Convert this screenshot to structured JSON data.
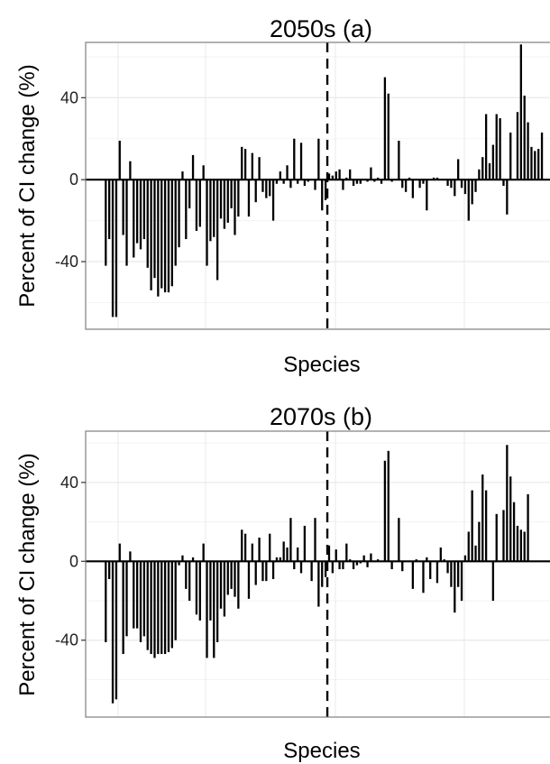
{
  "chart_data": [
    {
      "type": "bar",
      "title": "2050s (a)",
      "xlabel": "Species",
      "ylabel": "Percent of CI change (%)",
      "ylim": [
        -73,
        67
      ],
      "yticks": [
        -40,
        0,
        40
      ],
      "ytick_labels": [
        "-40",
        "0",
        "40"
      ],
      "grid": true,
      "xticks_shown": false,
      "divider_position": 63.5,
      "colors": {
        "bar": "#000000",
        "grid": "#ebebeb",
        "zero_line": "#000000",
        "divider": "#000000",
        "panel_border": "#7f7f7f"
      },
      "values": [
        -42,
        -29,
        -67,
        -67,
        19,
        -27,
        -42,
        9,
        -38,
        -31,
        -34,
        -29,
        -43,
        -54,
        -48,
        -57,
        -53,
        -55,
        -55,
        -52,
        -42,
        -33,
        4,
        -29,
        -14,
        12,
        -25,
        -23,
        7,
        -42,
        -30,
        -28,
        -49,
        -19,
        -24,
        -21,
        -14,
        -27,
        -18,
        16,
        15,
        -18,
        13,
        -11,
        11,
        -6,
        -9,
        -8,
        -20,
        -2,
        4,
        -2,
        7,
        -4,
        20,
        -2,
        18,
        -3,
        -1,
        0,
        -5,
        20,
        -15,
        -10,
        3,
        2,
        4,
        5,
        -5,
        1,
        5,
        -3,
        -2,
        -2,
        0,
        -1,
        6,
        -1,
        1,
        -2,
        50,
        42,
        -1,
        0,
        19,
        -4,
        -6,
        1,
        -9,
        0,
        -4,
        -2,
        -15,
        0,
        1,
        1,
        0,
        0,
        -3,
        -4,
        -8,
        10,
        -4,
        -7,
        -20,
        -12,
        -6,
        5,
        11,
        32,
        8,
        17,
        32,
        30,
        -3,
        -17,
        23,
        0,
        33,
        66,
        41,
        28,
        16,
        14,
        15,
        23
      ]
    },
    {
      "type": "bar",
      "title": "2070s (b)",
      "xlabel": "Species",
      "ylabel": "Percent of CI change (%)",
      "ylim": [
        -79,
        66
      ],
      "yticks": [
        -40,
        0,
        40
      ],
      "ytick_labels": [
        "-40",
        "0",
        "40"
      ],
      "grid": true,
      "xticks_shown": false,
      "divider_position": 63.5,
      "colors": {
        "bar": "#000000",
        "grid": "#ebebeb",
        "zero_line": "#000000",
        "divider": "#000000",
        "panel_border": "#7f7f7f"
      },
      "values": [
        -41,
        -9,
        -72,
        -70,
        9,
        -47,
        -38,
        5,
        -34,
        -34,
        -41,
        -38,
        -45,
        -47,
        -49,
        -47,
        -47,
        -47,
        -46,
        -44,
        -40,
        -2,
        3,
        -14,
        -20,
        2,
        -27,
        -30,
        9,
        -49,
        -30,
        -49,
        -41,
        -24,
        -28,
        -17,
        -14,
        -18,
        -24,
        16,
        14,
        -19,
        9,
        -12,
        12,
        -10,
        -10,
        14,
        -9,
        2,
        2,
        10,
        7,
        22,
        -4,
        7,
        -6,
        18,
        0,
        -10,
        22,
        -23,
        -13,
        -8,
        8,
        -6,
        6,
        -4,
        -4,
        9,
        1,
        -4,
        -2,
        -1,
        3,
        -3,
        4,
        0,
        1,
        0,
        51,
        56,
        -4,
        0,
        22,
        -5,
        0,
        0,
        -14,
        1,
        0,
        -16,
        2,
        -9,
        0,
        -11,
        7,
        1,
        -6,
        -13,
        -26,
        -13,
        -20,
        3,
        15,
        36,
        8,
        20,
        44,
        36,
        0,
        -20,
        24,
        0,
        26,
        59,
        43,
        30,
        18,
        16,
        15,
        34
      ]
    }
  ]
}
